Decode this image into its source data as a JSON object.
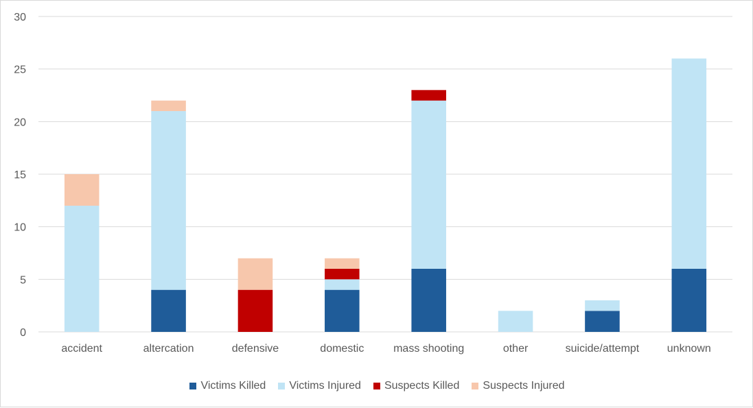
{
  "chart_data": {
    "type": "bar",
    "stacked": true,
    "categories": [
      "accident",
      "altercation",
      "defensive",
      "domestic",
      "mass shooting",
      "other",
      "suicide/attempt",
      "unknown"
    ],
    "series": [
      {
        "name": "Victims Killed",
        "color": "#1F5C99",
        "values": [
          0,
          4,
          0,
          4,
          6,
          0,
          2,
          6
        ]
      },
      {
        "name": "Victims Injured",
        "color": "#C0E4F5",
        "values": [
          12,
          17,
          0,
          1,
          16,
          2,
          1,
          20
        ]
      },
      {
        "name": "Suspects Killed",
        "color": "#C00000",
        "values": [
          0,
          0,
          4,
          1,
          1,
          0,
          0,
          0
        ]
      },
      {
        "name": "Suspects Injured",
        "color": "#F7C7AC",
        "values": [
          3,
          1,
          3,
          1,
          0,
          0,
          0,
          0
        ]
      }
    ],
    "ylim": [
      0,
      30
    ],
    "yticks": [
      "0",
      "5",
      "10",
      "15",
      "20",
      "25",
      "30"
    ],
    "grid": true,
    "legend_position": "bottom"
  }
}
